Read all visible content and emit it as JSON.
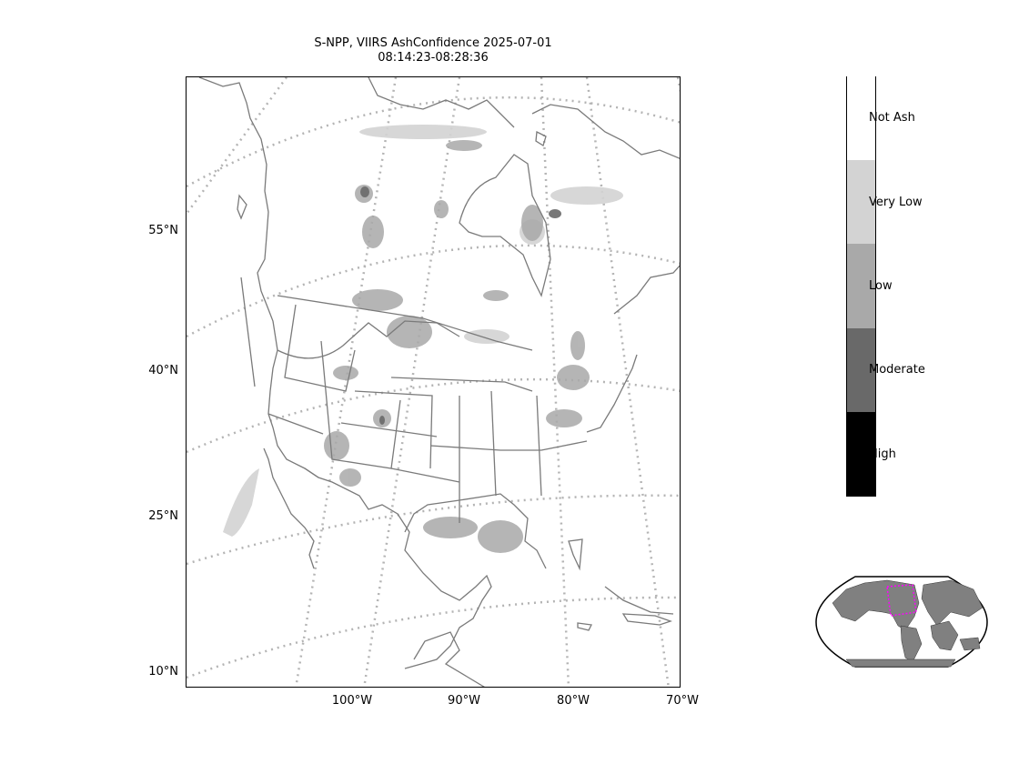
{
  "title": {
    "line1": "S-NPP, VIIRS AshConfidence 2025-07-01",
    "line2": "08:14:23-08:28:36"
  },
  "map": {
    "lat_labels": [
      "55°N",
      "40°N",
      "25°N",
      "10°N"
    ],
    "lon_labels": [
      "100°W",
      "90°W",
      "80°W",
      "70°W"
    ],
    "gridline_color": "#b4b4b4",
    "coastline_color": "#7a7a7a"
  },
  "colorbar": {
    "categories": [
      {
        "label": "Not Ash",
        "color": "#ffffff"
      },
      {
        "label": "Very Low",
        "color": "#d3d3d3"
      },
      {
        "label": "Low",
        "color": "#a9a9a9"
      },
      {
        "label": "Moderate",
        "color": "#696969"
      },
      {
        "label": "High",
        "color": "#000000"
      }
    ]
  },
  "locator": {
    "land_color": "#808080",
    "highlight_color": "#ff00ff"
  }
}
